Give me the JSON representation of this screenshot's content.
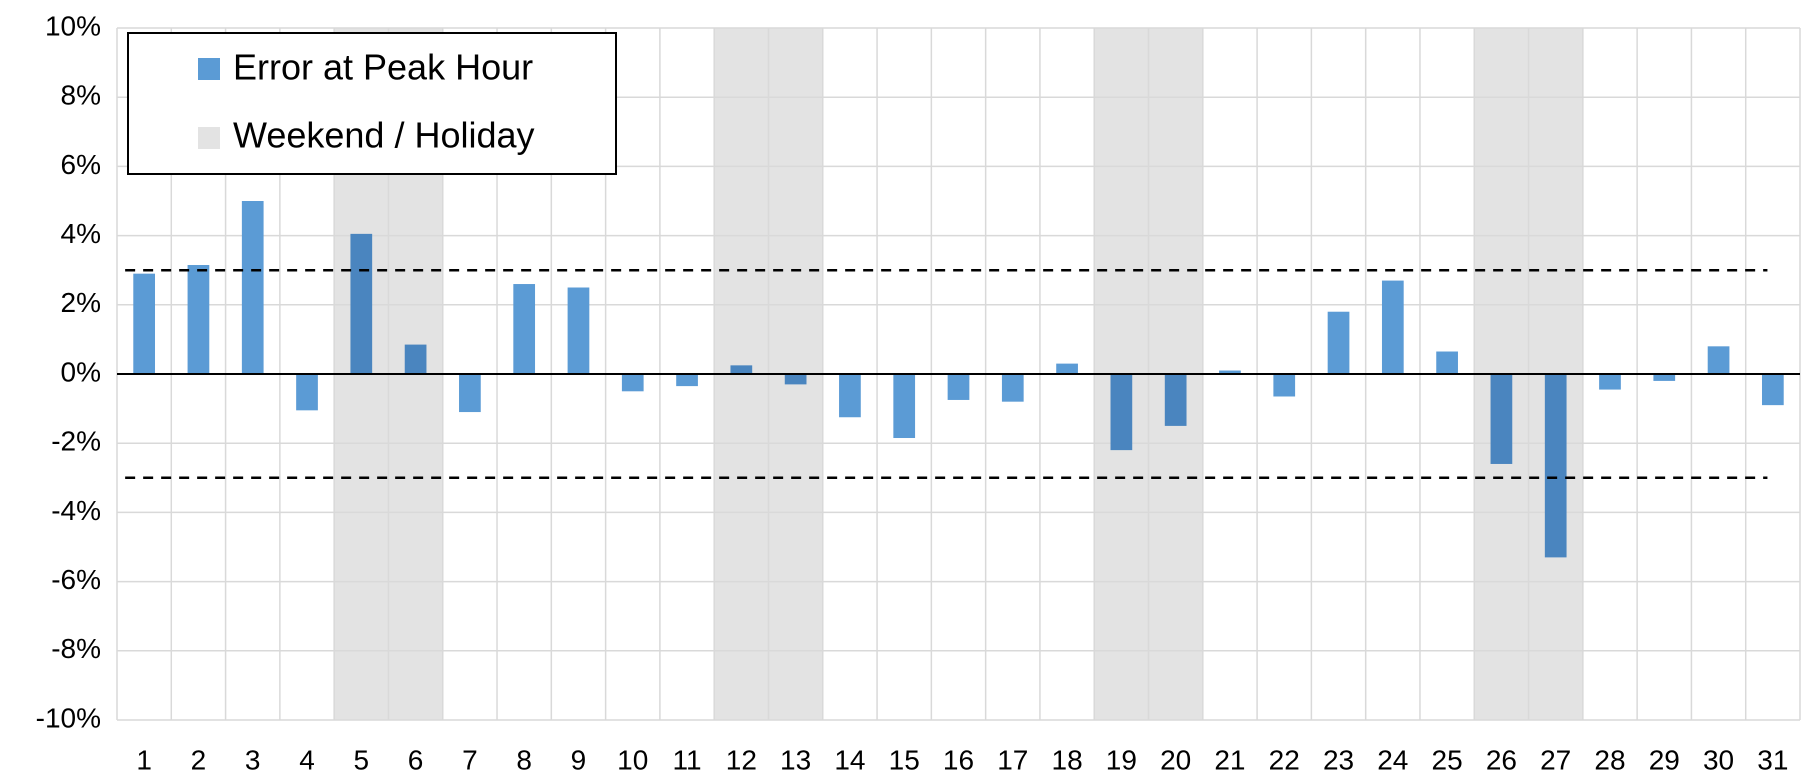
{
  "chart_data": {
    "type": "bar",
    "categories": [
      "1",
      "2",
      "3",
      "4",
      "5",
      "6",
      "7",
      "8",
      "9",
      "10",
      "11",
      "12",
      "13",
      "14",
      "15",
      "16",
      "17",
      "18",
      "19",
      "20",
      "21",
      "22",
      "23",
      "24",
      "25",
      "26",
      "27",
      "28",
      "29",
      "30",
      "31"
    ],
    "series": [
      {
        "name": "Error at Peak Hour",
        "color": "#5b9bd5",
        "highlight_color": "#4a85bf",
        "values": [
          2.9,
          3.15,
          5.0,
          -1.05,
          4.05,
          0.85,
          -1.1,
          2.6,
          2.5,
          -0.5,
          -0.35,
          0.25,
          -0.3,
          -1.25,
          -1.85,
          -0.75,
          -0.8,
          0.3,
          -2.2,
          -1.5,
          0.1,
          -0.65,
          1.8,
          2.7,
          0.65,
          -2.6,
          -5.3,
          -0.45,
          -0.2,
          0.8,
          -0.9
        ]
      }
    ],
    "shading": {
      "name": "Weekend / Holiday",
      "color": "#e3e3e3",
      "categories": [
        "5",
        "6",
        "12",
        "13",
        "19",
        "20",
        "26",
        "27"
      ]
    },
    "reference_lines": [
      3,
      -3
    ],
    "ylim": [
      -10,
      10
    ],
    "yticks": [
      {
        "value": -10,
        "label": "-10%"
      },
      {
        "value": -8,
        "label": "-8%"
      },
      {
        "value": -6,
        "label": "-6%"
      },
      {
        "value": -4,
        "label": "-4%"
      },
      {
        "value": -2,
        "label": "-2%"
      },
      {
        "value": 0,
        "label": "0%"
      },
      {
        "value": 2,
        "label": "2%"
      },
      {
        "value": 4,
        "label": "4%"
      },
      {
        "value": 6,
        "label": "6%"
      },
      {
        "value": 8,
        "label": "8%"
      },
      {
        "value": 10,
        "label": "10%"
      }
    ],
    "grid": true,
    "legend": "upper left"
  }
}
